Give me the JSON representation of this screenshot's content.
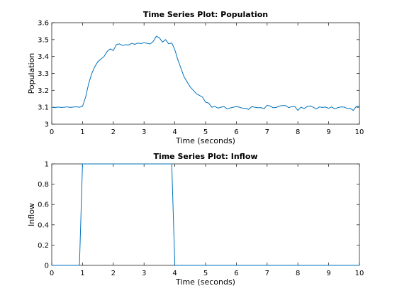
{
  "chart_data": [
    {
      "type": "line",
      "title": "Time Series Plot: Population",
      "xlabel": "Time (seconds)",
      "ylabel": "Population",
      "xlim": [
        0,
        10
      ],
      "ylim": [
        3,
        3.6
      ],
      "xticks": [
        "0",
        "1",
        "2",
        "3",
        "4",
        "5",
        "6",
        "7",
        "8",
        "9",
        "10"
      ],
      "yticks": [
        "3",
        "3.1",
        "3.2",
        "3.3",
        "3.4",
        "3.5",
        "3.6"
      ],
      "grid": false,
      "color": "#0072bd",
      "series": [
        {
          "x": [
            0,
            0.1,
            0.2,
            0.3,
            0.4,
            0.5,
            0.6,
            0.7,
            0.8,
            0.9,
            1.0,
            1.1,
            1.2,
            1.3,
            1.4,
            1.5,
            1.6,
            1.7,
            1.8,
            1.9,
            2.0,
            2.1,
            2.2,
            2.3,
            2.4,
            2.5,
            2.6,
            2.7,
            2.8,
            2.9,
            3.0,
            3.1,
            3.2,
            3.3,
            3.4,
            3.5,
            3.6,
            3.7,
            3.8,
            3.9,
            4.0,
            4.1,
            4.2,
            4.3,
            4.4,
            4.5,
            4.6,
            4.7,
            4.8,
            4.9,
            5.0,
            5.1,
            5.2,
            5.3,
            5.4,
            5.5,
            5.6,
            5.7,
            5.8,
            5.9,
            6.0,
            6.1,
            6.2,
            6.3,
            6.4,
            6.5,
            6.6,
            6.7,
            6.8,
            6.9,
            7.0,
            7.1,
            7.2,
            7.3,
            7.4,
            7.5,
            7.6,
            7.7,
            7.8,
            7.9,
            8.0,
            8.1,
            8.2,
            8.3,
            8.4,
            8.5,
            8.6,
            8.7,
            8.8,
            8.9,
            9.0,
            9.1,
            9.2,
            9.3,
            9.4,
            9.5,
            9.6,
            9.7,
            9.8,
            9.9,
            10.0
          ],
          "y": [
            3.1,
            3.098,
            3.101,
            3.099,
            3.1,
            3.102,
            3.099,
            3.101,
            3.103,
            3.1,
            3.105,
            3.16,
            3.24,
            3.3,
            3.34,
            3.37,
            3.385,
            3.4,
            3.43,
            3.445,
            3.435,
            3.47,
            3.475,
            3.465,
            3.47,
            3.468,
            3.478,
            3.472,
            3.48,
            3.476,
            3.482,
            3.478,
            3.474,
            3.49,
            3.52,
            3.51,
            3.485,
            3.5,
            3.475,
            3.48,
            3.44,
            3.38,
            3.33,
            3.28,
            3.25,
            3.22,
            3.2,
            3.18,
            3.17,
            3.16,
            3.13,
            3.125,
            3.1,
            3.105,
            3.095,
            3.1,
            3.104,
            3.09,
            3.096,
            3.1,
            3.104,
            3.1,
            3.095,
            3.094,
            3.087,
            3.104,
            3.1,
            3.097,
            3.098,
            3.091,
            3.112,
            3.107,
            3.097,
            3.099,
            3.107,
            3.11,
            3.11,
            3.098,
            3.103,
            3.104,
            3.081,
            3.101,
            3.092,
            3.104,
            3.108,
            3.1,
            3.09,
            3.102,
            3.099,
            3.101,
            3.094,
            3.102,
            3.09,
            3.098,
            3.102,
            3.101,
            3.093,
            3.094,
            3.081,
            3.105,
            3.108
          ]
        }
      ]
    },
    {
      "type": "line",
      "title": "Time Series Plot: Inflow",
      "xlabel": "Time (seconds)",
      "ylabel": "Inflow",
      "xlim": [
        0,
        10
      ],
      "ylim": [
        0,
        1
      ],
      "xticks": [
        "0",
        "1",
        "2",
        "3",
        "4",
        "5",
        "6",
        "7",
        "8",
        "9",
        "10"
      ],
      "yticks": [
        "0",
        "0.2",
        "0.4",
        "0.6",
        "0.8",
        "1"
      ],
      "grid": false,
      "color": "#0072bd",
      "series": [
        {
          "x": [
            0,
            0.9,
            1.0,
            3.9,
            4.0,
            10
          ],
          "y": [
            0,
            0,
            1,
            1,
            0,
            0
          ]
        }
      ]
    }
  ]
}
